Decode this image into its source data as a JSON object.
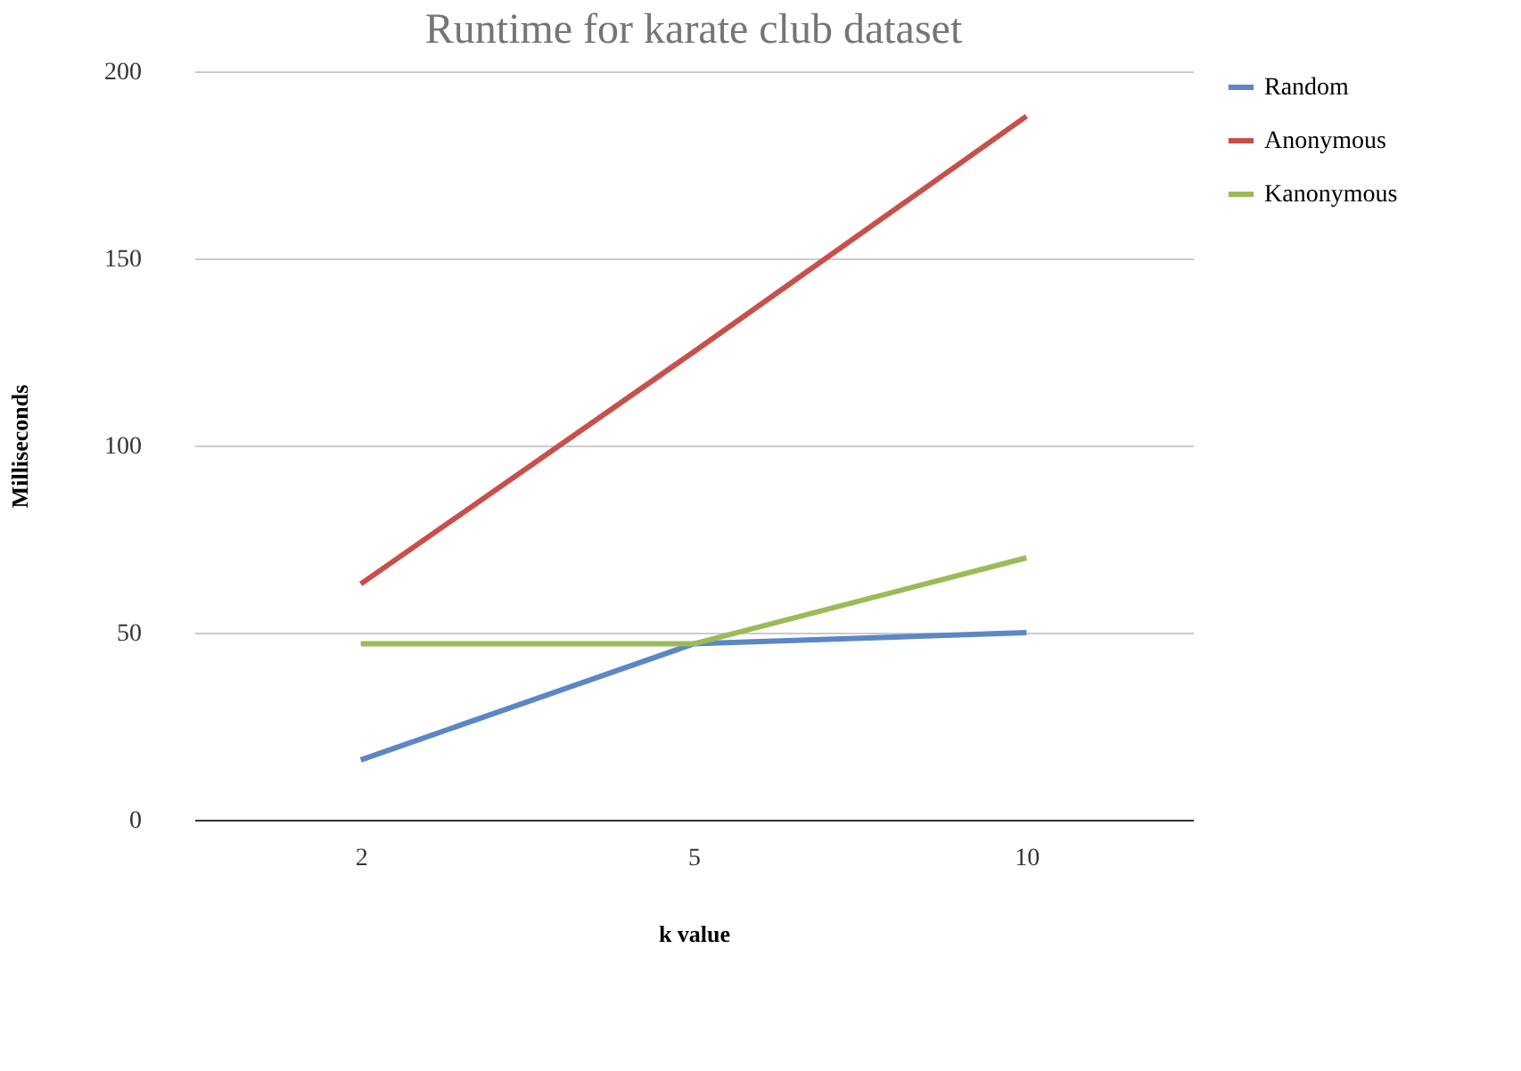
{
  "chart_data": {
    "type": "line",
    "title": "Runtime for karate club dataset",
    "xlabel": "k value",
    "ylabel": "Milliseconds",
    "categories": [
      "2",
      "5",
      "10"
    ],
    "series": [
      {
        "name": "Random",
        "color": "#5b87c7",
        "values": [
          16,
          47,
          50
        ]
      },
      {
        "name": "Anonymous",
        "color": "#c9504a",
        "values": [
          63,
          125,
          188
        ]
      },
      {
        "name": "Kanonymous",
        "color": "#9bbb59",
        "values": [
          47,
          47,
          70
        ]
      }
    ],
    "ylim": [
      0,
      200
    ],
    "yticks": [
      0,
      50,
      100,
      150,
      200
    ],
    "grid": "y",
    "legend": "right",
    "marker": "none",
    "line_style": "solid"
  }
}
